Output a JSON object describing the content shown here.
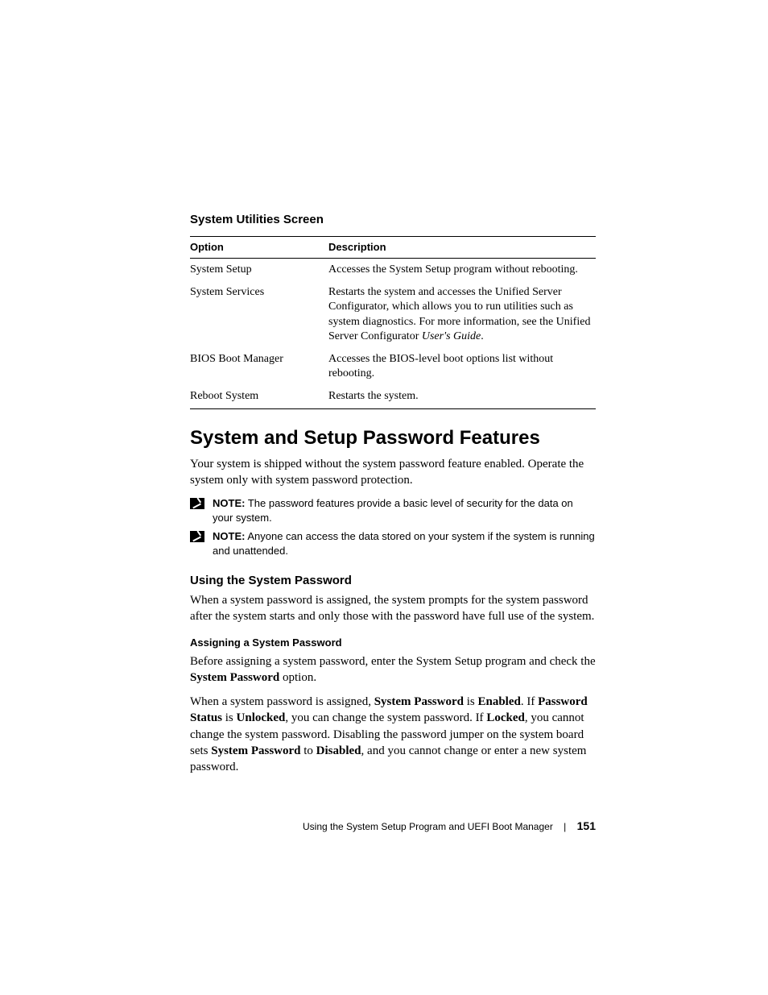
{
  "section_heading": "System Utilities Screen",
  "table": {
    "headers": {
      "option": "Option",
      "description": "Description"
    },
    "rows": [
      {
        "option": "System Setup",
        "description": "Accesses the System Setup program without rebooting."
      },
      {
        "option": "System Services",
        "description_pre": "Restarts the system and accesses the Unified Server Configurator, which allows you to run utilities such as system diagnostics. For more information, see the Unified Server Configurator ",
        "description_italic": "User's Guide",
        "description_post": "."
      },
      {
        "option": "BIOS Boot Manager",
        "description": "Accesses the BIOS-level boot options list without rebooting."
      },
      {
        "option": "Reboot System",
        "description": "Restarts the system."
      }
    ]
  },
  "main_heading": "System and Setup Password Features",
  "intro": "Your system is shipped without the system password feature enabled. Operate the system only with system password protection.",
  "notes": [
    {
      "label": "NOTE:",
      "text": " The password features provide a basic level of security for the data on your system."
    },
    {
      "label": "NOTE:",
      "text": " Anyone can access the data stored on your system if the system is running and unattended."
    }
  ],
  "sub_heading": "Using the System Password",
  "sub_body": "When a system password is assigned, the system prompts for the system password after the system starts and only those with the password have full use of the system.",
  "assign_heading": "Assigning a System Password",
  "assign_p1_pre": "Before assigning a system password, enter the System Setup program and check the ",
  "assign_p1_b1": "System Password",
  "assign_p1_post": " option.",
  "p2": {
    "t1": "When a system password is assigned, ",
    "b1": "System Password",
    "t2": " is ",
    "b2": "Enabled",
    "t3": ". If ",
    "b3": "Password Status",
    "t4": " is ",
    "b4": "Unlocked",
    "t5": ", you can change the system password. If ",
    "b5": "Locked",
    "t6": ", you cannot change the system password. Disabling the password jumper on the system board sets ",
    "b6": "System Password",
    "t7": " to ",
    "b7": "Disabled",
    "t8": ", and you cannot change or enter a new system password."
  },
  "footer": {
    "text": "Using the System Setup Program and UEFI Boot Manager",
    "sep": "|",
    "page": "151"
  },
  "colors": {
    "text": "#000000",
    "background": "#ffffff"
  },
  "fonts": {
    "serif": "Georgia",
    "sans": "Arial",
    "body_size_pt": 11,
    "heading_size_pt": 18,
    "section_heading_size_pt": 11
  }
}
